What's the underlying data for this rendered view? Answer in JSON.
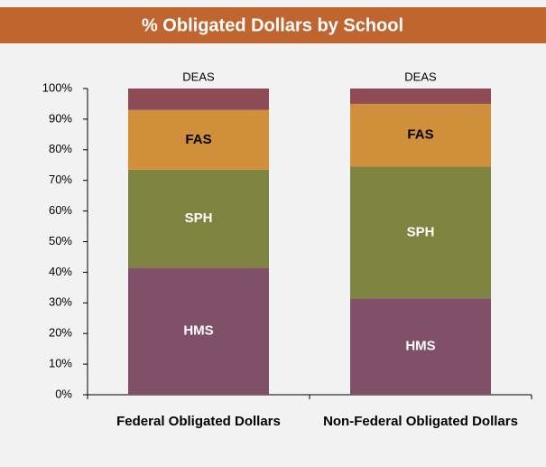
{
  "chart_data": {
    "type": "stacked_bar",
    "title": "% Obligated Dollars by School",
    "categories": [
      "Federal Obligated Dollars",
      "Non-Federal Obligated Dollars"
    ],
    "series": [
      {
        "name": "HMS",
        "color": "#7f5067",
        "values": [
          41.5,
          31.5
        ]
      },
      {
        "name": "SPH",
        "color": "#7f8540",
        "values": [
          32,
          43
        ]
      },
      {
        "name": "FAS",
        "color": "#d08f3a",
        "values": [
          19.5,
          20.5
        ]
      },
      {
        "name": "DEAS",
        "color": "#8e4a55",
        "values": [
          7,
          5
        ]
      }
    ],
    "ylim": [
      0,
      100
    ],
    "yticks": [
      {
        "value": 0,
        "label": "0%"
      },
      {
        "value": 10,
        "label": "10%"
      },
      {
        "value": 20,
        "label": "20%"
      },
      {
        "value": 30,
        "label": "30%"
      },
      {
        "value": 40,
        "label": "40%"
      },
      {
        "value": 50,
        "label": "50%"
      },
      {
        "value": 60,
        "label": "60%"
      },
      {
        "value": 70,
        "label": "70%"
      },
      {
        "value": 80,
        "label": "80%"
      },
      {
        "value": 90,
        "label": "90%"
      },
      {
        "value": 100,
        "label": "100%"
      }
    ]
  }
}
